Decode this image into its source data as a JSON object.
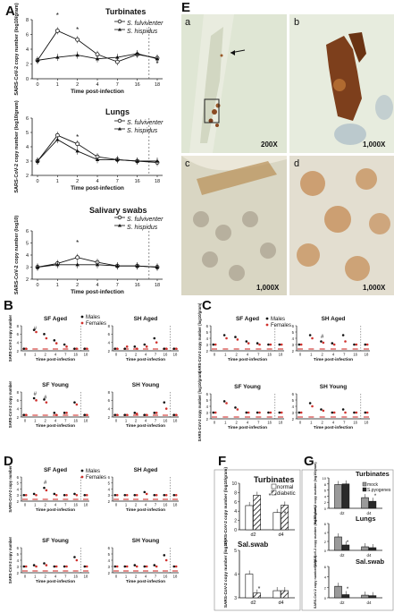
{
  "panel_letters": {
    "A": "A",
    "B": "B",
    "C": "C",
    "D": "D",
    "E": "E",
    "F": "F",
    "G": "G"
  },
  "species": {
    "sf": "S. fulviventer",
    "sh": "S. hispidus"
  },
  "axis_text": {
    "x_label": "Time post-infection",
    "y_tissue": "SARS-CoV-2 copy number (log10/gram)",
    "y_swab": "SARS-CoV-2 copy number (log10)",
    "y_short": "SARS-CoV-2 copy number"
  },
  "sex_legend": {
    "males": "Males",
    "females": "Females"
  },
  "panel_E": {
    "labels": [
      "a",
      "b",
      "c",
      "d"
    ],
    "magnifications": [
      "200X",
      "1,000X",
      "1,000X",
      "1,000X"
    ]
  },
  "chart_data": [
    {
      "panel": "A",
      "type": "line",
      "title": "Turbinates",
      "xlabel": "Time post-infection",
      "ylabel": "SARS-CoV-2 copy number (log10/gram)",
      "x": [
        0,
        1,
        2,
        4,
        7,
        16,
        18
      ],
      "xticks": [
        "0",
        "1",
        "2",
        "4",
        "7",
        "16",
        "18"
      ],
      "ylim": [
        0,
        8
      ],
      "yticks": [
        "0",
        "2",
        "4",
        "6",
        "8"
      ],
      "series": [
        {
          "name": "S. fulviventer",
          "marker": "open-circle",
          "values": [
            2.5,
            6.5,
            5.3,
            3.3,
            2.3,
            3.3,
            2.8
          ]
        },
        {
          "name": "S. hispidus",
          "marker": "filled-triangle",
          "values": [
            2.5,
            2.9,
            3.2,
            2.7,
            2.9,
            3.4,
            2.7
          ]
        }
      ],
      "annotations": [
        "*",
        "*",
        "*"
      ]
    },
    {
      "panel": "A",
      "type": "line",
      "title": "Lungs",
      "xlabel": "Time post-infection",
      "ylabel": "SARS-CoV-2 copy number (log10/gram)",
      "x": [
        0,
        1,
        2,
        4,
        7,
        16,
        18
      ],
      "xticks": [
        "0",
        "1",
        "2",
        "4",
        "7",
        "16",
        "18"
      ],
      "ylim": [
        2,
        6
      ],
      "yticks": [
        "2",
        "3",
        "4",
        "5",
        "6"
      ],
      "series": [
        {
          "name": "S. fulviventer",
          "marker": "open-circle",
          "values": [
            3.0,
            4.8,
            4.2,
            3.3,
            3.1,
            3.0,
            2.9
          ]
        },
        {
          "name": "S. hispidus",
          "marker": "filled-triangle",
          "values": [
            3.0,
            4.5,
            3.7,
            3.1,
            3.1,
            3.0,
            3.0
          ]
        }
      ],
      "annotations": [
        "*"
      ]
    },
    {
      "panel": "A",
      "type": "line",
      "title": "Salivary swabs",
      "xlabel": "Time post-infection",
      "ylabel": "SARS-CoV-2 copy number (log10)",
      "x": [
        0,
        1,
        2,
        4,
        7,
        16,
        18
      ],
      "xticks": [
        "0",
        "1",
        "2",
        "4",
        "7",
        "16",
        "18"
      ],
      "ylim": [
        2,
        6
      ],
      "yticks": [
        "2",
        "3",
        "4",
        "5",
        "6"
      ],
      "series": [
        {
          "name": "S. fulviventer",
          "marker": "open-circle",
          "values": [
            3.0,
            3.3,
            3.8,
            3.4,
            3.1,
            3.1,
            3.0
          ]
        },
        {
          "name": "S. hispidus",
          "marker": "filled-triangle",
          "values": [
            3.0,
            3.2,
            3.2,
            3.2,
            3.1,
            3.1,
            3.0
          ]
        }
      ],
      "annotations": [
        "*"
      ]
    },
    {
      "panel": "B",
      "type": "scatter",
      "title": "SF Aged",
      "xlabel": "Time post-infection",
      "ylabel": "SARS-CoV-2 copy number",
      "x": [
        0,
        1,
        2,
        4,
        7,
        16,
        18
      ],
      "xticks": [
        "0",
        "1",
        "2",
        "4",
        "7",
        "16",
        "18"
      ],
      "ylim": [
        2,
        8
      ],
      "yticks": [
        "2",
        "4",
        "6",
        "8"
      ],
      "series": [
        {
          "name": "Males",
          "values": [
            2.5,
            7.0,
            6.0,
            4.5,
            3.5,
            2.5,
            2.5
          ]
        },
        {
          "name": "Females",
          "values": [
            2.5,
            6.5,
            5.0,
            3.8,
            3.0,
            2.5,
            2.5
          ]
        }
      ],
      "annotations": [
        "#"
      ]
    },
    {
      "panel": "B",
      "type": "scatter",
      "title": "SH Aged",
      "xlabel": "Time post-infection",
      "ylabel": "",
      "x": [
        0,
        1,
        2,
        4,
        7,
        16,
        18
      ],
      "xticks": [
        "0",
        "1",
        "2",
        "4",
        "7",
        "16",
        "18"
      ],
      "ylim": [
        2,
        8
      ],
      "yticks": [
        "2",
        "4",
        "6",
        "8"
      ],
      "series": [
        {
          "name": "Males",
          "values": [
            2.5,
            2.5,
            3.0,
            3.5,
            5.0,
            2.5,
            2.5
          ]
        },
        {
          "name": "Females",
          "values": [
            2.5,
            3.0,
            2.5,
            3.0,
            4.0,
            2.5,
            2.5
          ]
        }
      ]
    },
    {
      "panel": "B",
      "type": "scatter",
      "title": "SF Young",
      "xlabel": "Time post-infection",
      "ylabel": "SARS-CoV-2 copy number",
      "x": [
        0,
        1,
        2,
        4,
        7,
        16,
        18
      ],
      "xticks": [
        "0",
        "1",
        "2",
        "4",
        "7",
        "16",
        "18"
      ],
      "ylim": [
        2,
        8
      ],
      "yticks": [
        "2",
        "4",
        "6",
        "8"
      ],
      "series": [
        {
          "name": "Males",
          "values": [
            2.5,
            6.5,
            6.2,
            3.0,
            3.0,
            5.5,
            2.5
          ]
        },
        {
          "name": "Females",
          "values": [
            2.5,
            6.0,
            5.5,
            2.5,
            3.0,
            5.0,
            2.5
          ]
        }
      ],
      "annotations": [
        "#",
        "#"
      ]
    },
    {
      "panel": "B",
      "type": "scatter",
      "title": "SH Young",
      "xlabel": "Time post-infection",
      "ylabel": "",
      "x": [
        0,
        1,
        2,
        4,
        7,
        16,
        18
      ],
      "xticks": [
        "0",
        "1",
        "2",
        "4",
        "7",
        "16",
        "18"
      ],
      "ylim": [
        2,
        8
      ],
      "yticks": [
        "2",
        "4",
        "6",
        "8"
      ],
      "series": [
        {
          "name": "Males",
          "values": [
            2.5,
            2.5,
            3.0,
            2.5,
            3.0,
            5.5,
            2.5
          ]
        },
        {
          "name": "Females",
          "values": [
            2.5,
            2.5,
            2.8,
            2.5,
            3.0,
            4.0,
            2.5
          ]
        }
      ]
    },
    {
      "panel": "C",
      "type": "scatter",
      "title": "SF Aged",
      "xlabel": "Time post-infection",
      "ylabel": "SARS-CoV-2 copy number (log10/gram)",
      "x": [
        0,
        1,
        2,
        4,
        7,
        16,
        18
      ],
      "xticks": [
        "0",
        "1",
        "2",
        "4",
        "7",
        "16",
        "18"
      ],
      "ylim": [
        2,
        6
      ],
      "yticks": [
        "2",
        "3",
        "4",
        "5",
        "6"
      ],
      "series": [
        {
          "name": "Males",
          "values": [
            3.0,
            4.5,
            4.2,
            3.5,
            3.2,
            3.0,
            3.0
          ]
        },
        {
          "name": "Females",
          "values": [
            3.0,
            4.0,
            3.8,
            3.2,
            3.0,
            3.0,
            3.0
          ]
        }
      ]
    },
    {
      "panel": "C",
      "type": "scatter",
      "title": "SH Aged",
      "xlabel": "Time post-infection",
      "ylabel": "",
      "x": [
        0,
        1,
        2,
        4,
        7,
        16,
        18
      ],
      "xticks": [
        "0",
        "1",
        "2",
        "4",
        "7",
        "16",
        "18"
      ],
      "ylim": [
        2,
        6
      ],
      "yticks": [
        "2",
        "3",
        "4",
        "5",
        "6"
      ],
      "series": [
        {
          "name": "Males",
          "values": [
            3.0,
            4.5,
            3.5,
            3.2,
            4.5,
            3.0,
            3.0
          ]
        },
        {
          "name": "Females",
          "values": [
            3.0,
            4.0,
            3.3,
            3.0,
            3.5,
            3.0,
            3.0
          ]
        }
      ],
      "annotations": [
        "#"
      ]
    },
    {
      "panel": "C",
      "type": "scatter",
      "title": "SF Young",
      "xlabel": "Time post-infection",
      "ylabel": "SARS-CoV-2 copy number (log10/gram)",
      "x": [
        0,
        1,
        2,
        4,
        7,
        16,
        18
      ],
      "xticks": [
        "0",
        "1",
        "2",
        "4",
        "7",
        "16",
        "18"
      ],
      "ylim": [
        2,
        6
      ],
      "yticks": [
        "2",
        "3",
        "4",
        "5",
        "6"
      ],
      "series": [
        {
          "name": "Males",
          "values": [
            3.0,
            4.8,
            3.8,
            3.0,
            3.0,
            3.0,
            3.0
          ]
        },
        {
          "name": "Females",
          "values": [
            3.0,
            4.5,
            3.5,
            3.0,
            3.0,
            3.0,
            3.0
          ]
        }
      ]
    },
    {
      "panel": "C",
      "type": "scatter",
      "title": "SH Young",
      "xlabel": "Time post-infection",
      "ylabel": "",
      "x": [
        0,
        1,
        2,
        4,
        7,
        16,
        18
      ],
      "xticks": [
        "0",
        "1",
        "2",
        "4",
        "7",
        "16",
        "18"
      ],
      "ylim": [
        2,
        6
      ],
      "yticks": [
        "2",
        "3",
        "4",
        "5",
        "6"
      ],
      "series": [
        {
          "name": "Males",
          "values": [
            3.0,
            4.5,
            3.5,
            3.0,
            3.5,
            3.0,
            3.0
          ]
        },
        {
          "name": "Females",
          "values": [
            3.0,
            4.0,
            3.3,
            3.0,
            3.0,
            3.0,
            3.0
          ]
        }
      ]
    },
    {
      "panel": "D",
      "type": "scatter",
      "title": "SF Aged",
      "xlabel": "Time post-infection",
      "ylabel": "SARS-CoV-2 copy number",
      "x": [
        0,
        1,
        2,
        4,
        7,
        16,
        18
      ],
      "xticks": [
        "0",
        "1",
        "2",
        "4",
        "7",
        "16",
        "18"
      ],
      "ylim": [
        2,
        6
      ],
      "yticks": [
        "2",
        "3",
        "4",
        "5",
        "6"
      ],
      "series": [
        {
          "name": "Males",
          "values": [
            3.0,
            3.2,
            4.2,
            3.2,
            3.0,
            3.2,
            3.0
          ]
        },
        {
          "name": "Females",
          "values": [
            3.0,
            3.0,
            3.8,
            3.0,
            3.0,
            3.0,
            3.0
          ]
        }
      ],
      "annotations": [
        "#"
      ]
    },
    {
      "panel": "D",
      "type": "scatter",
      "title": "SH Aged",
      "xlabel": "Time post-infection",
      "ylabel": "",
      "x": [
        0,
        1,
        2,
        4,
        7,
        16,
        18
      ],
      "xticks": [
        "0",
        "1",
        "2",
        "4",
        "7",
        "16",
        "18"
      ],
      "ylim": [
        2,
        6
      ],
      "yticks": [
        "2",
        "3",
        "4",
        "5",
        "6"
      ],
      "series": [
        {
          "name": "Males",
          "values": [
            3.0,
            3.0,
            3.0,
            3.5,
            3.0,
            3.0,
            3.0
          ]
        },
        {
          "name": "Females",
          "values": [
            3.0,
            3.0,
            3.0,
            3.2,
            3.0,
            3.0,
            3.0
          ]
        }
      ]
    },
    {
      "panel": "D",
      "type": "scatter",
      "title": "SF Young",
      "xlabel": "Time post-infection",
      "ylabel": "SARS-CoV-2 copy number",
      "x": [
        0,
        1,
        2,
        4,
        7,
        16,
        18
      ],
      "xticks": [
        "0",
        "1",
        "2",
        "4",
        "7",
        "16",
        "18"
      ],
      "ylim": [
        2,
        6
      ],
      "yticks": [
        "2",
        "3",
        "4",
        "5",
        "6"
      ],
      "series": [
        {
          "name": "Males",
          "values": [
            3.0,
            3.2,
            3.5,
            3.0,
            3.0,
            4.5,
            3.0
          ]
        },
        {
          "name": "Females",
          "values": [
            3.0,
            3.0,
            3.2,
            3.0,
            3.0,
            4.0,
            3.0
          ]
        }
      ]
    },
    {
      "panel": "D",
      "type": "scatter",
      "title": "SH Young",
      "xlabel": "Time post-infection",
      "ylabel": "",
      "x": [
        0,
        1,
        2,
        4,
        7,
        16,
        18
      ],
      "xticks": [
        "0",
        "1",
        "2",
        "4",
        "7",
        "16",
        "18"
      ],
      "ylim": [
        2,
        6
      ],
      "yticks": [
        "2",
        "3",
        "4",
        "5",
        "6"
      ],
      "series": [
        {
          "name": "Males",
          "values": [
            3.0,
            3.0,
            3.2,
            3.0,
            3.2,
            4.8,
            3.0
          ]
        },
        {
          "name": "Females",
          "values": [
            3.0,
            3.0,
            3.0,
            3.0,
            3.0,
            4.0,
            3.0
          ]
        }
      ]
    },
    {
      "panel": "F",
      "type": "bar",
      "title": "Turbinates",
      "categories": [
        "d2",
        "d4"
      ],
      "ylim": [
        0,
        10
      ],
      "yticks": [
        "0",
        "2",
        "4",
        "6",
        "8",
        "10"
      ],
      "ylabel": "SARS-CoV-2 copy number (log10/gram)",
      "series": [
        {
          "name": "normal",
          "values": [
            5.2,
            3.7
          ]
        },
        {
          "name": "diabetic",
          "values": [
            7.4,
            5.3
          ]
        }
      ],
      "annotations": [
        "*",
        "*"
      ]
    },
    {
      "panel": "F",
      "type": "bar",
      "title": "Sal.swab",
      "categories": [
        "d2",
        "d4"
      ],
      "ylim": [
        3,
        5
      ],
      "yticks": [
        "3",
        "4",
        "5"
      ],
      "ylabel": "SARS-CoV-2 copy number (log10)",
      "series": [
        {
          "name": "normal",
          "values": [
            4.0,
            3.3
          ]
        },
        {
          "name": "diabetic",
          "values": [
            3.2,
            3.3
          ]
        }
      ],
      "annotations": [
        "*"
      ]
    },
    {
      "panel": "G",
      "type": "bar",
      "title": "Turbinates",
      "categories": [
        "d2",
        "d4"
      ],
      "ylim": [
        0,
        10
      ],
      "yticks": [
        "0",
        "2",
        "4",
        "6",
        "8",
        "10"
      ],
      "ylabel": "SARS-CoV-2 copy number (log10/gram)",
      "series": [
        {
          "name": "mock",
          "values": [
            7.8,
            3.5
          ]
        },
        {
          "name": "S.pyogenes",
          "values": [
            8.0,
            2.3
          ]
        }
      ],
      "annotations": [
        "*"
      ]
    },
    {
      "panel": "G",
      "type": "bar",
      "title": "Lungs",
      "categories": [
        "d2",
        "d4"
      ],
      "ylim": [
        0,
        6
      ],
      "yticks": [
        "0",
        "2",
        "4",
        "6"
      ],
      "ylabel": "SARS-CoV-2 copy number (log10/gram)",
      "series": [
        {
          "name": "mock",
          "values": [
            3.0,
            0.8
          ]
        },
        {
          "name": "S.pyogenes",
          "values": [
            1.2,
            0.6
          ]
        }
      ],
      "annotations": [
        "*"
      ]
    },
    {
      "panel": "G",
      "type": "bar",
      "title": "Sal.swab",
      "categories": [
        "d2",
        "d4"
      ],
      "ylim": [
        0,
        6
      ],
      "yticks": [
        "0",
        "2",
        "4",
        "6"
      ],
      "ylabel": "SARS-CoV-2 copy number (log10)",
      "series": [
        {
          "name": "mock",
          "values": [
            2.2,
            0.5
          ]
        },
        {
          "name": "S.pyogenes",
          "values": [
            0.6,
            0.4
          ]
        }
      ],
      "annotations": [
        "*"
      ]
    }
  ]
}
